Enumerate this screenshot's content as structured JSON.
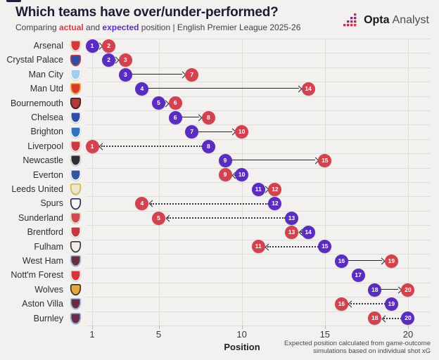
{
  "header": {
    "title": "Which teams have over/under-performed?",
    "subtitle": {
      "prefix": "Comparing ",
      "actual_word": "actual",
      "mid": " and ",
      "expected_word": "expected",
      "suffix": " position | English Premier League 2025-26"
    },
    "brand_bold": "Opta",
    "brand_regular": "Analyst"
  },
  "colors": {
    "background": "#f2f1ef",
    "actual_red": "#d2424f",
    "expected_purple": "#5a2dc0",
    "arrow": "#26262b",
    "gridline": "#dedad5"
  },
  "chart_data": {
    "type": "dumbbell",
    "title": "Which teams have over/under-performed?",
    "subtitle": "Comparing actual and expected position | English Premier League 2025-26",
    "xlabel": "Position",
    "x_ticks": [
      1,
      5,
      10,
      15,
      20
    ],
    "xlim": [
      1,
      20
    ],
    "legend": [
      {
        "name": "expected",
        "color": "#5a2dc0"
      },
      {
        "name": "actual",
        "color": "#d2424f"
      }
    ],
    "footnote": "Expected position calculated from game-outcome simulations based on individual shot xG",
    "teams": [
      {
        "name": "Arsenal",
        "expected": 1,
        "actual": 2,
        "crest": {
          "primary": "#cf3a3c",
          "secondary": "#f3e9d2"
        }
      },
      {
        "name": "Crystal Palace",
        "expected": 2,
        "actual": 3,
        "crest": {
          "primary": "#2f4fa2",
          "secondary": "#c23a44"
        }
      },
      {
        "name": "Man City",
        "expected": 3,
        "actual": 7,
        "crest": {
          "primary": "#a3cdea",
          "secondary": "#ffffff"
        }
      },
      {
        "name": "Man Utd",
        "expected": 4,
        "actual": 14,
        "crest": {
          "primary": "#d83a2c",
          "secondary": "#f0b94c"
        }
      },
      {
        "name": "Bournemouth",
        "expected": 5,
        "actual": 6,
        "crest": {
          "primary": "#b23834",
          "secondary": "#222222"
        }
      },
      {
        "name": "Chelsea",
        "expected": 6,
        "actual": 8,
        "crest": {
          "primary": "#2c4ea8",
          "secondary": "#ffffff"
        }
      },
      {
        "name": "Brighton",
        "expected": 7,
        "actual": 10,
        "crest": {
          "primary": "#3173ba",
          "secondary": "#ffffff"
        }
      },
      {
        "name": "Liverpool",
        "expected": 8,
        "actual": 1,
        "crest": {
          "primary": "#ca3840",
          "secondary": "#f6eded"
        }
      },
      {
        "name": "Newcastle",
        "expected": 9,
        "actual": 15,
        "crest": {
          "primary": "#2e2e36",
          "secondary": "#e6e6e6"
        }
      },
      {
        "name": "Everton",
        "expected": 10,
        "actual": 9,
        "crest": {
          "primary": "#3356a0",
          "secondary": "#ffffff"
        }
      },
      {
        "name": "Leeds United",
        "expected": 11,
        "actual": 12,
        "crest": {
          "primary": "#ece7cd",
          "secondary": "#d8b53c"
        }
      },
      {
        "name": "Spurs",
        "expected": 12,
        "actual": 4,
        "crest": {
          "primary": "#f4f4f4",
          "secondary": "#1c2143"
        }
      },
      {
        "name": "Sunderland",
        "expected": 13,
        "actual": 5,
        "crest": {
          "primary": "#ca4a50",
          "secondary": "#f0e6d0"
        }
      },
      {
        "name": "Brentford",
        "expected": 14,
        "actual": 13,
        "crest": {
          "primary": "#c23a42",
          "secondary": "#ffffff"
        }
      },
      {
        "name": "Fulham",
        "expected": 15,
        "actual": 11,
        "crest": {
          "primary": "#efedea",
          "secondary": "#2c2c2c"
        }
      },
      {
        "name": "West Ham",
        "expected": 16,
        "actual": 19,
        "crest": {
          "primary": "#6e2c3e",
          "secondary": "#92c6e6"
        }
      },
      {
        "name": "Nott'm Forest",
        "expected": 17,
        "actual": 17,
        "crest": {
          "primary": "#d6343c",
          "secondary": "#f5efef"
        }
      },
      {
        "name": "Wolves",
        "expected": 18,
        "actual": 20,
        "crest": {
          "primary": "#e6a838",
          "secondary": "#2a2a2a"
        }
      },
      {
        "name": "Aston Villa",
        "expected": 19,
        "actual": 16,
        "crest": {
          "primary": "#6b2a43",
          "secondary": "#9fc4e4"
        }
      },
      {
        "name": "Burnley",
        "expected": 20,
        "actual": 18,
        "crest": {
          "primary": "#6e2a4a",
          "secondary": "#92b4d6"
        }
      }
    ]
  }
}
